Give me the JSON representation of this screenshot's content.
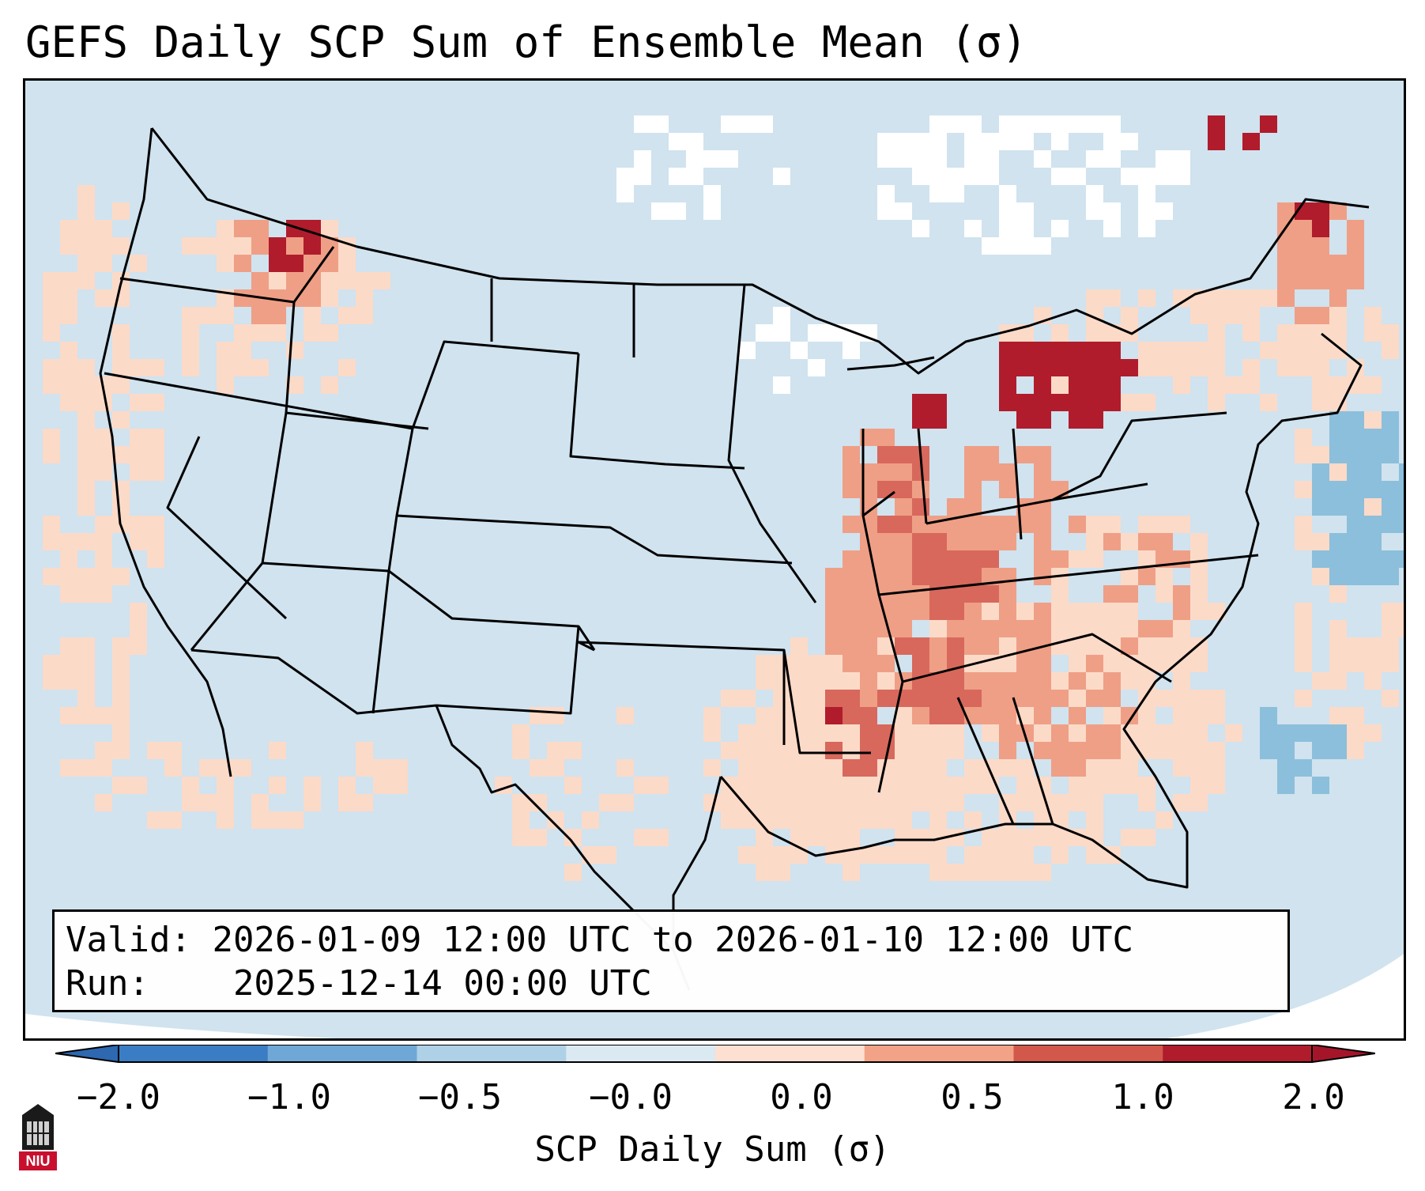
{
  "title": "GEFS Daily SCP Sum of Ensemble Mean (σ)",
  "info": {
    "valid_label": "Valid:",
    "valid_value": "2026-01-09 12:00 UTC to 2026-01-10 12:00 UTC",
    "run_label": "Run:",
    "run_value": "2025-12-14 00:00 UTC"
  },
  "colorbar": {
    "label": "SCP Daily Sum (σ)",
    "ticks": [
      "−2.0",
      "−1.0",
      "−0.5",
      "−0.0",
      "0.0",
      "0.5",
      "1.0",
      "2.0"
    ],
    "colors": [
      "#3b7dc4",
      "#6fa8d6",
      "#aed1e7",
      "#dbe9f2",
      "#fde0d2",
      "#f2a286",
      "#d1584a",
      "#b01c2c"
    ],
    "ext_low": "#2d68b0",
    "ext_high": "#a5152a"
  },
  "map": {
    "background": "#d0e3ef",
    "levels": {
      "low": "#fcdac8",
      "mid": "#ef9f86",
      "high": "#d8685c",
      "max": "#b01c2c",
      "neg": "#8cbfdb",
      "none": "#ffffff"
    }
  },
  "logo": {
    "text": "NIU"
  }
}
